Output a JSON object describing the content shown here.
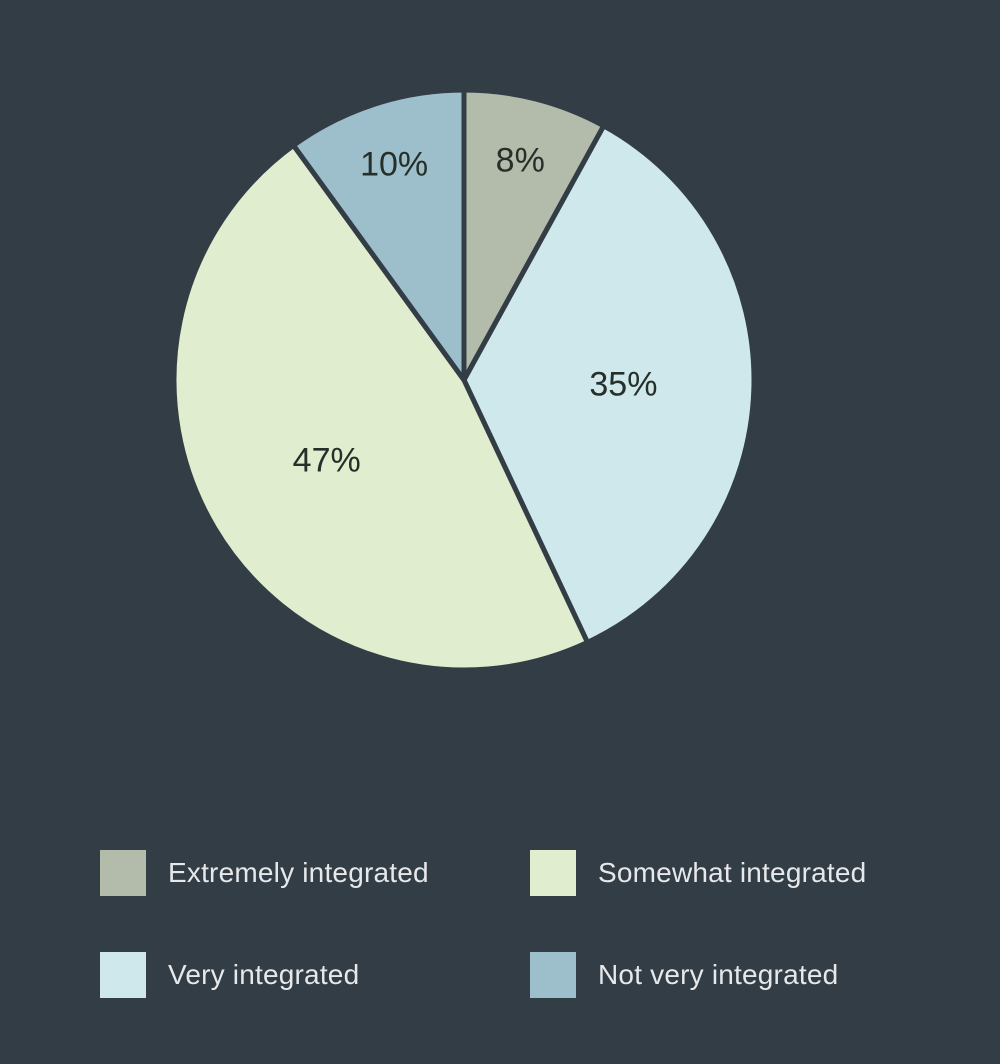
{
  "chart": {
    "type": "pie",
    "background_color": "#333d45",
    "stroke_color": "#333d45",
    "stroke_width": 5,
    "radius": 290,
    "slice_label_fontsize": 34,
    "slice_label_color": "#262f29",
    "legend_label_fontsize": 28,
    "legend_label_color": "#e6e8ea",
    "swatch_size": 46,
    "start_angle_deg": -90,
    "slices": [
      {
        "key": "extremely",
        "label": "Extremely integrated",
        "value": 8,
        "display": "8%",
        "color": "#b3bbab"
      },
      {
        "key": "very",
        "label": "Very integrated",
        "value": 35,
        "display": "35%",
        "color": "#cfe8eb"
      },
      {
        "key": "somewhat",
        "label": "Somewhat integrated",
        "value": 47,
        "display": "47%",
        "color": "#e0edce"
      },
      {
        "key": "notvery",
        "label": "Not very integrated",
        "value": 10,
        "display": "10%",
        "color": "#9cbfcb"
      }
    ],
    "legend_order": [
      "extremely",
      "somewhat",
      "very",
      "notvery"
    ]
  }
}
